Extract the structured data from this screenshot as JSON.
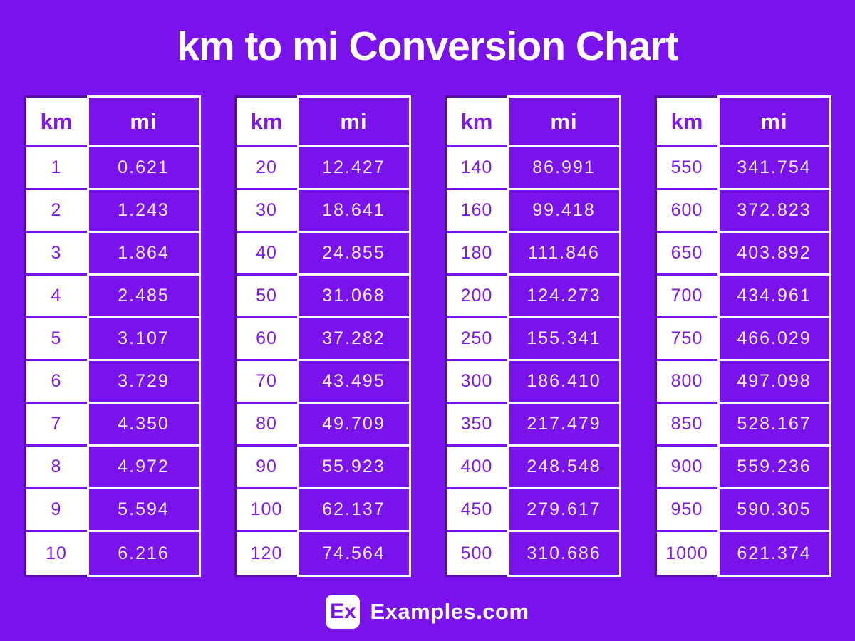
{
  "title": "km to mi Conversion Chart",
  "theme": {
    "background": "#7a12eb",
    "cell_purple": "#7a12eb",
    "dark_border": "#560da6",
    "km_text_color": "#7d1ae6",
    "mi_text_color": "#f4eefc",
    "white": "#ffffff"
  },
  "tables": [
    {
      "headers": [
        "km",
        "mi"
      ],
      "rows": [
        [
          "1",
          "0.621"
        ],
        [
          "2",
          "1.243"
        ],
        [
          "3",
          "1.864"
        ],
        [
          "4",
          "2.485"
        ],
        [
          "5",
          "3.107"
        ],
        [
          "6",
          "3.729"
        ],
        [
          "7",
          "4.350"
        ],
        [
          "8",
          "4.972"
        ],
        [
          "9",
          "5.594"
        ],
        [
          "10",
          "6.216"
        ]
      ]
    },
    {
      "headers": [
        "km",
        "mi"
      ],
      "rows": [
        [
          "20",
          "12.427"
        ],
        [
          "30",
          "18.641"
        ],
        [
          "40",
          "24.855"
        ],
        [
          "50",
          "31.068"
        ],
        [
          "60",
          "37.282"
        ],
        [
          "70",
          "43.495"
        ],
        [
          "80",
          "49.709"
        ],
        [
          "90",
          "55.923"
        ],
        [
          "100",
          "62.137"
        ],
        [
          "120",
          "74.564"
        ]
      ]
    },
    {
      "headers": [
        "km",
        "mi"
      ],
      "rows": [
        [
          "140",
          "86.991"
        ],
        [
          "160",
          "99.418"
        ],
        [
          "180",
          "111.846"
        ],
        [
          "200",
          "124.273"
        ],
        [
          "250",
          "155.341"
        ],
        [
          "300",
          "186.410"
        ],
        [
          "350",
          "217.479"
        ],
        [
          "400",
          "248.548"
        ],
        [
          "450",
          "279.617"
        ],
        [
          "500",
          "310.686"
        ]
      ]
    },
    {
      "headers": [
        "km",
        "mi"
      ],
      "rows": [
        [
          "550",
          "341.754"
        ],
        [
          "600",
          "372.823"
        ],
        [
          "650",
          "403.892"
        ],
        [
          "700",
          "434.961"
        ],
        [
          "750",
          "466.029"
        ],
        [
          "800",
          "497.098"
        ],
        [
          "850",
          "528.167"
        ],
        [
          "900",
          "559.236"
        ],
        [
          "950",
          "590.305"
        ],
        [
          "1000",
          "621.374"
        ]
      ]
    }
  ],
  "footer": {
    "logo_text": "Ex",
    "site_name": "Examples.com"
  },
  "chart_data": {
    "type": "table",
    "title": "km to mi Conversion Chart",
    "columns": [
      "km",
      "mi"
    ],
    "rows": [
      [
        1,
        0.621
      ],
      [
        2,
        1.243
      ],
      [
        3,
        1.864
      ],
      [
        4,
        2.485
      ],
      [
        5,
        3.107
      ],
      [
        6,
        3.729
      ],
      [
        7,
        4.35
      ],
      [
        8,
        4.972
      ],
      [
        9,
        5.594
      ],
      [
        10,
        6.216
      ],
      [
        20,
        12.427
      ],
      [
        30,
        18.641
      ],
      [
        40,
        24.855
      ],
      [
        50,
        31.068
      ],
      [
        60,
        37.282
      ],
      [
        70,
        43.495
      ],
      [
        80,
        49.709
      ],
      [
        90,
        55.923
      ],
      [
        100,
        62.137
      ],
      [
        120,
        74.564
      ],
      [
        140,
        86.991
      ],
      [
        160,
        99.418
      ],
      [
        180,
        111.846
      ],
      [
        200,
        124.273
      ],
      [
        250,
        155.341
      ],
      [
        300,
        186.41
      ],
      [
        350,
        217.479
      ],
      [
        400,
        248.548
      ],
      [
        450,
        279.617
      ],
      [
        500,
        310.686
      ],
      [
        550,
        341.754
      ],
      [
        600,
        372.823
      ],
      [
        650,
        403.892
      ],
      [
        700,
        434.961
      ],
      [
        750,
        466.029
      ],
      [
        800,
        497.098
      ],
      [
        850,
        528.167
      ],
      [
        900,
        559.236
      ],
      [
        950,
        590.305
      ],
      [
        1000,
        621.374
      ]
    ]
  }
}
